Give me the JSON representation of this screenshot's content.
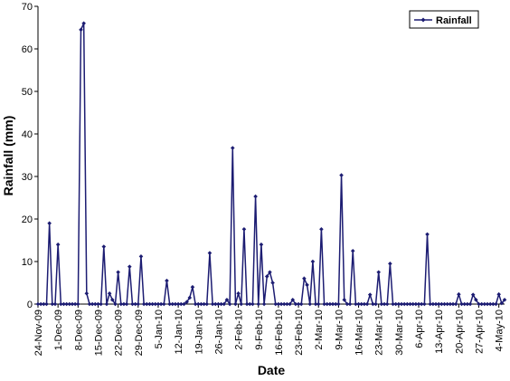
{
  "chart_data": {
    "type": "line",
    "xlabel": "Date",
    "ylabel": "Rainfall (mm)",
    "legend": "top-right",
    "categories": [
      "24-Nov-09",
      null,
      null,
      null,
      null,
      null,
      null,
      "1-Dec-09",
      null,
      null,
      null,
      null,
      null,
      null,
      "8-Dec-09",
      null,
      null,
      null,
      null,
      null,
      null,
      "15-Dec-09",
      null,
      null,
      null,
      null,
      null,
      null,
      "22-Dec-09",
      null,
      null,
      null,
      null,
      null,
      null,
      "29-Dec-09",
      null,
      null,
      null,
      null,
      null,
      null,
      "5-Jan-10",
      null,
      null,
      null,
      null,
      null,
      null,
      "12-Jan-10",
      null,
      null,
      null,
      null,
      null,
      null,
      "19-Jan-10",
      null,
      null,
      null,
      null,
      null,
      null,
      "26-Jan-10",
      null,
      null,
      null,
      null,
      null,
      null,
      "2-Feb-10",
      null,
      null,
      null,
      null,
      null,
      null,
      "9-Feb-10",
      null,
      null,
      null,
      null,
      null,
      null,
      "16-Feb-10",
      null,
      null,
      null,
      null,
      null,
      null,
      "23-Feb-10",
      null,
      null,
      null,
      null,
      null,
      null,
      "2-Mar-10",
      null,
      null,
      null,
      null,
      null,
      null,
      "9-Mar-10",
      null,
      null,
      null,
      null,
      null,
      null,
      "16-Mar-10",
      null,
      null,
      null,
      null,
      null,
      null,
      "23-Mar-10",
      null,
      null,
      null,
      null,
      null,
      null,
      "30-Mar-10",
      null,
      null,
      null,
      null,
      null,
      null,
      "6-Apr-10",
      null,
      null,
      null,
      null,
      null,
      null,
      "13-Apr-10",
      null,
      null,
      null,
      null,
      null,
      null,
      "20-Apr-10",
      null,
      null,
      null,
      null,
      null,
      null,
      "27-Apr-10",
      null,
      null,
      null,
      null,
      null,
      null,
      "4-May-10",
      null,
      null
    ],
    "series": [
      {
        "name": "Rainfall",
        "color": "#1c1c72",
        "values": [
          0,
          0,
          0,
          0,
          19,
          0,
          0,
          14,
          0,
          0,
          0,
          0,
          0,
          0,
          0,
          64.5,
          66,
          2.5,
          0,
          0,
          0,
          0,
          0,
          13.5,
          0,
          2.5,
          1,
          0,
          7.5,
          0,
          0,
          0,
          8.8,
          0,
          0,
          0,
          11.2,
          0,
          0,
          0,
          0,
          0,
          0,
          0,
          0,
          5.5,
          0,
          0,
          0,
          0,
          0,
          0,
          0.5,
          1.5,
          4,
          0,
          0,
          0,
          0,
          0,
          12,
          0,
          0,
          0,
          0,
          0,
          1,
          0,
          36.7,
          0,
          2.5,
          0,
          17.6,
          0,
          0,
          0,
          25.3,
          0,
          14,
          0,
          6.5,
          7.5,
          5,
          0,
          0,
          0,
          0,
          0,
          0,
          1,
          0,
          0,
          0,
          6,
          4.5,
          0,
          10,
          0,
          0,
          17.6,
          0,
          0,
          0,
          0,
          0,
          0,
          30.3,
          1,
          0,
          0,
          12.5,
          0,
          0,
          0,
          0,
          0,
          2.2,
          0,
          0,
          7.5,
          0,
          0,
          0,
          9.5,
          0,
          0,
          0,
          0,
          0,
          0,
          0,
          0,
          0,
          0,
          0,
          0,
          16.4,
          0,
          0,
          0,
          0,
          0,
          0,
          0,
          0,
          0,
          0,
          2.3,
          0,
          0,
          0,
          0,
          2.2,
          1,
          0,
          0,
          0,
          0,
          0,
          0,
          0,
          2.3,
          0.2,
          1
        ]
      }
    ],
    "ylim": [
      0,
      70
    ],
    "yticks": [
      0,
      10,
      20,
      30,
      40,
      50,
      60,
      70
    ],
    "grid": false
  }
}
